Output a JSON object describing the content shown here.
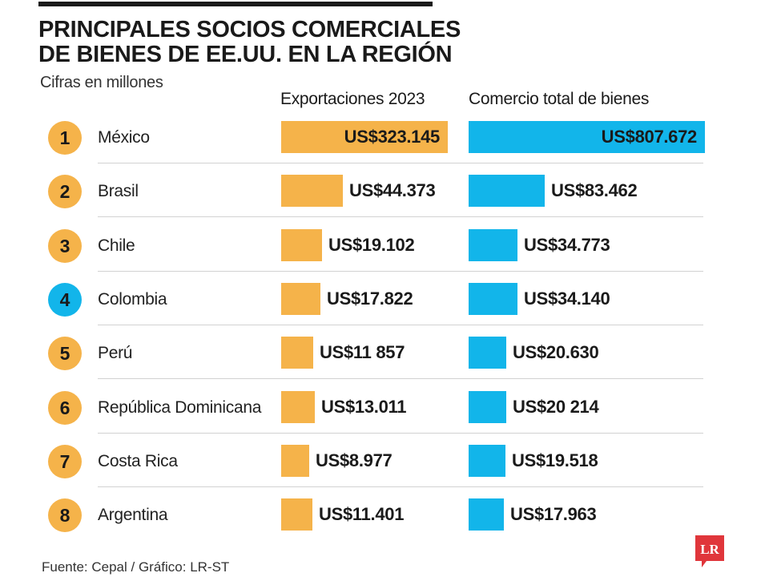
{
  "header": {
    "title_line1": "PRINCIPALES SOCIOS COMERCIALES",
    "title_line2": "DE BIENES DE EE.UU. EN LA REGIÓN",
    "subtitle": "Cifras en millones"
  },
  "columns": {
    "exports": "Exportaciones 2023",
    "total": "Comercio total de bienes"
  },
  "colors": {
    "exports": "#f5b34a",
    "total": "#12b5ea",
    "highlight": "#12b5ea",
    "logo": "#e0363b"
  },
  "footer": {
    "source": "Fuente: Cepal / Gráfico: LR-ST"
  },
  "logo": {
    "text": "LR"
  },
  "chart_data": {
    "type": "bar",
    "title": "PRINCIPALES SOCIOS COMERCIALES DE BIENES DE EE.UU. EN LA REGIÓN",
    "subtitle": "Cifras en millones",
    "categories": [
      "México",
      "Brasil",
      "Chile",
      "Colombia",
      "Perú",
      "República Dominicana",
      "Costa Rica",
      "Argentina"
    ],
    "ranks": [
      "1",
      "2",
      "3",
      "4",
      "5",
      "6",
      "7",
      "8"
    ],
    "highlighted_rank": "4",
    "series": [
      {
        "name": "Exportaciones 2023",
        "values": [
          323.145,
          44.373,
          19.102,
          17.822,
          11.857,
          13.011,
          8.977,
          11.401
        ],
        "labels": [
          "US$323.145",
          "US$44.373",
          "US$19.102",
          "US$17.822",
          "US$11 857",
          "US$13.011",
          "US$8.977",
          "US$11.401"
        ]
      },
      {
        "name": "Comercio total de bienes",
        "values": [
          807.672,
          83.462,
          34.773,
          34.14,
          20.63,
          20.214,
          19.518,
          17.963
        ],
        "labels": [
          "US$807.672",
          "US$83.462",
          "US$34.773",
          "US$34.140",
          "US$20.630",
          "US$20 214",
          "US$19.518",
          "US$17.963"
        ]
      }
    ],
    "source": "Fuente: Cepal / Gráfico: LR-ST"
  }
}
